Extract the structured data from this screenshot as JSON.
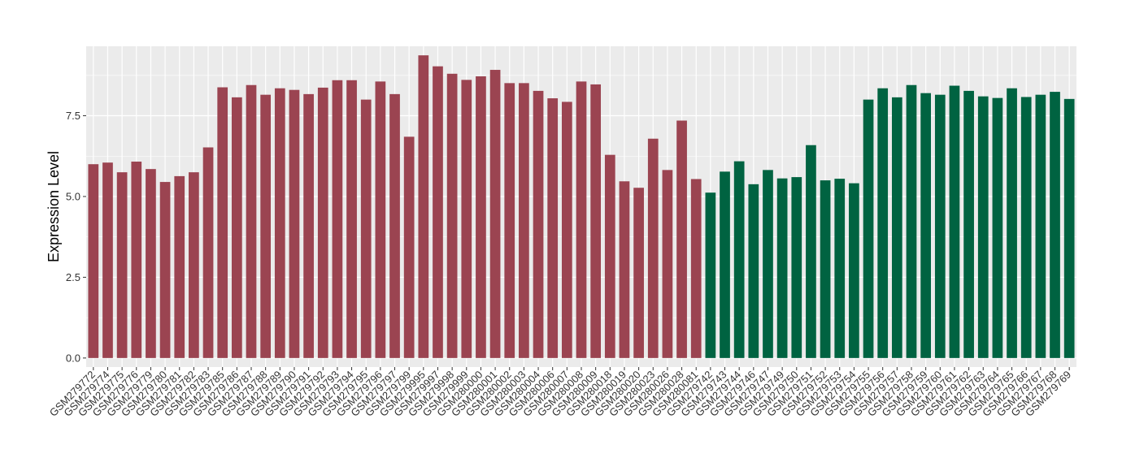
{
  "chart_data": {
    "type": "bar",
    "title": "",
    "xlabel": "",
    "ylabel": "Expression Level",
    "ylim": [
      -0.28,
      9.65
    ],
    "yticks": [
      0.0,
      2.5,
      5.0,
      7.5
    ],
    "ytick_labels": [
      "0.0",
      "2.5",
      "5.0",
      "7.5"
    ],
    "grid": true,
    "legend": "none",
    "panel_color": "#EBEBEB",
    "grid_color": "#FFFFFF",
    "series": [
      {
        "color": "#9B4451",
        "categories": [
          "GSM279772",
          "GSM279774",
          "GSM279775",
          "GSM279776",
          "GSM279779",
          "GSM279780",
          "GSM279781",
          "GSM279782",
          "GSM279783",
          "GSM279785",
          "GSM279786",
          "GSM279787",
          "GSM279788",
          "GSM279789",
          "GSM279790",
          "GSM279791",
          "GSM279792",
          "GSM279793",
          "GSM279794",
          "GSM279795",
          "GSM279796",
          "GSM279797",
          "GSM279799",
          "GSM279995",
          "GSM279997",
          "GSM279998",
          "GSM279999",
          "GSM280000",
          "GSM280001",
          "GSM280002",
          "GSM280003",
          "GSM280004",
          "GSM280006",
          "GSM280007",
          "GSM280008",
          "GSM280009",
          "GSM280018",
          "GSM280019",
          "GSM280020",
          "GSM280023",
          "GSM280026",
          "GSM280028",
          "GSM280081"
        ],
        "values": [
          6.0,
          6.05,
          5.75,
          6.08,
          5.85,
          5.45,
          5.63,
          5.75,
          6.52,
          8.38,
          8.07,
          8.45,
          8.15,
          8.35,
          8.3,
          8.17,
          8.37,
          8.6,
          8.6,
          8.0,
          8.56,
          8.17,
          6.85,
          9.37,
          9.03,
          8.8,
          8.61,
          8.72,
          8.92,
          8.51,
          8.51,
          8.27,
          8.04,
          7.93,
          8.56,
          8.47,
          6.29,
          5.47,
          5.27,
          6.79,
          5.82,
          7.35,
          5.54
        ]
      },
      {
        "color": "#006341",
        "categories": [
          "GSM279742",
          "GSM279743",
          "GSM279744",
          "GSM279746",
          "GSM279747",
          "GSM279749",
          "GSM279750",
          "GSM279751",
          "GSM279752",
          "GSM279753",
          "GSM279754",
          "GSM279755",
          "GSM279756",
          "GSM279757",
          "GSM279758",
          "GSM279759",
          "GSM279760",
          "GSM279761",
          "GSM279762",
          "GSM279763",
          "GSM279764",
          "GSM279765",
          "GSM279766",
          "GSM279767",
          "GSM279768",
          "GSM279769"
        ],
        "values": [
          5.12,
          5.77,
          6.09,
          5.38,
          5.82,
          5.56,
          5.6,
          6.59,
          5.5,
          5.55,
          5.41,
          8.0,
          8.35,
          8.07,
          8.45,
          8.2,
          8.15,
          8.43,
          8.27,
          8.1,
          8.05,
          8.35,
          8.08,
          8.15,
          8.24,
          8.02
        ]
      }
    ]
  }
}
